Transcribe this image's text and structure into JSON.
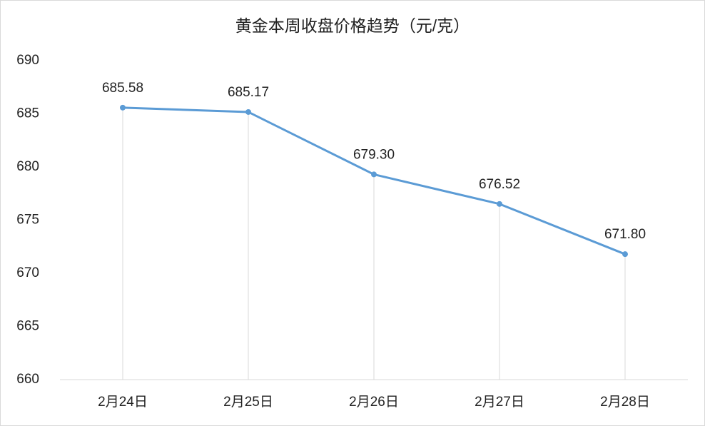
{
  "chart_data": {
    "type": "line",
    "title": "黄金本周收盘价格趋势（元/克）",
    "categories": [
      "2月24日",
      "2月25日",
      "2月26日",
      "2月27日",
      "2月28日"
    ],
    "values": [
      685.58,
      685.17,
      679.3,
      676.52,
      671.8
    ],
    "value_labels": [
      "685.58",
      "685.17",
      "679.30",
      "676.52",
      "671.80"
    ],
    "color": "#5b9bd5",
    "ylim": [
      660,
      690
    ],
    "yticks": [
      660,
      665,
      670,
      675,
      680,
      685,
      690
    ],
    "drop_lines": true
  }
}
